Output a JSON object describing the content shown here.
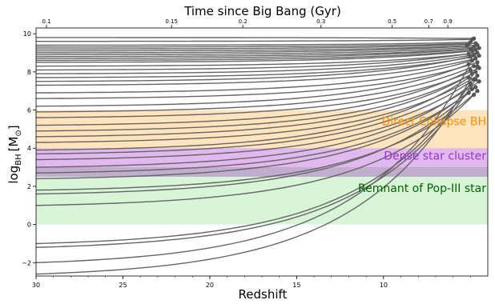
{
  "chart_data": {
    "type": "line",
    "title": "",
    "xlabel": "Redshift",
    "ylabel": "log",
    "ylabel_sub": "BH",
    "ylabel_unit": "[M",
    "ylabel_unit_close": "]",
    "top_axis_label": "Time since Big Bang (Gyr)",
    "xlim": [
      30,
      4
    ],
    "ylim": [
      -2.7,
      10.3
    ],
    "xticks": [
      {
        "value": 30,
        "label": "30"
      },
      {
        "value": 25,
        "label": "25"
      },
      {
        "value": 20,
        "label": "20"
      },
      {
        "value": 15,
        "label": "15"
      },
      {
        "value": 10,
        "label": "10"
      }
    ],
    "yticks": [
      {
        "value": 10,
        "label": "10"
      },
      {
        "value": 8,
        "label": "8"
      },
      {
        "value": 6,
        "label": "6"
      },
      {
        "value": 4,
        "label": "4"
      },
      {
        "value": 2,
        "label": "2"
      },
      {
        "value": 0,
        "label": "0"
      },
      {
        "value": -2,
        "label": "−2"
      }
    ],
    "top_ticks": [
      {
        "z": 29.4,
        "label": "0.1"
      },
      {
        "z": 22.2,
        "label": "0.15"
      },
      {
        "z": 18.1,
        "label": "0.2"
      },
      {
        "z": 13.6,
        "label": "0.3"
      },
      {
        "z": 9.5,
        "label": "0.5"
      },
      {
        "z": 7.4,
        "label": "0.7"
      },
      {
        "z": 6.3,
        "label": "0.9"
      }
    ],
    "bands": [
      {
        "label": "Direct Collapse BH",
        "ymin": 4.0,
        "ymax": 6.0,
        "color": "#ffd699",
        "opacity": 0.65,
        "text_color": "#ff8c00",
        "text_y": 5.2
      },
      {
        "label": "Dense star cluster",
        "ymin": 2.5,
        "ymax": 4.0,
        "color": "#b74fd6",
        "opacity": 0.4,
        "text_color": "#9932cc",
        "text_y": 3.4
      },
      {
        "label": "Remnant of Pop-III star",
        "ymin": 0.0,
        "ymax": 2.5,
        "color": "#b2ecb2",
        "opacity": 0.5,
        "text_color": "#006400",
        "text_y": 1.7
      }
    ],
    "band_overlap": {
      "ymin": 2.5,
      "ymax": 3.0,
      "color": "#9aa0a6",
      "opacity": 0.45
    },
    "line_color": "#666666",
    "marker_color": "#555555",
    "grid": false,
    "start_z": 30,
    "series": [
      {
        "start": 9.8,
        "end": 9.75,
        "z_end": 4.8
      },
      {
        "start": 9.6,
        "end": 9.7,
        "z_end": 4.9
      },
      {
        "start": 9.4,
        "end": 9.55,
        "z_end": 5.0
      },
      {
        "start": 9.3,
        "end": 9.5,
        "z_end": 4.7
      },
      {
        "start": 9.2,
        "end": 9.45,
        "z_end": 5.1
      },
      {
        "start": 9.1,
        "end": 9.4,
        "z_end": 4.6
      },
      {
        "start": 9.0,
        "end": 9.35,
        "z_end": 5.2
      },
      {
        "start": 8.9,
        "end": 9.3,
        "z_end": 4.8
      },
      {
        "start": 8.8,
        "end": 9.25,
        "z_end": 4.5
      },
      {
        "start": 8.7,
        "end": 9.2,
        "z_end": 5.0
      },
      {
        "start": 8.6,
        "end": 9.15,
        "z_end": 4.7
      },
      {
        "start": 8.5,
        "end": 9.1,
        "z_end": 4.9
      },
      {
        "start": 8.3,
        "end": 9.0,
        "z_end": 4.6
      },
      {
        "start": 8.1,
        "end": 8.95,
        "z_end": 5.1
      },
      {
        "start": 7.9,
        "end": 8.9,
        "z_end": 4.8
      },
      {
        "start": 7.7,
        "end": 8.85,
        "z_end": 4.5
      },
      {
        "start": 7.5,
        "end": 8.8,
        "z_end": 5.0
      },
      {
        "start": 7.3,
        "end": 8.7,
        "z_end": 4.7
      },
      {
        "start": 6.9,
        "end": 8.6,
        "z_end": 4.9
      },
      {
        "start": 6.6,
        "end": 8.5,
        "z_end": 4.6
      },
      {
        "start": 6.2,
        "end": 8.4,
        "z_end": 5.1
      },
      {
        "start": 5.9,
        "end": 8.3,
        "z_end": 4.8
      },
      {
        "start": 5.6,
        "end": 8.2,
        "z_end": 4.5
      },
      {
        "start": 5.2,
        "end": 8.1,
        "z_end": 5.0
      },
      {
        "start": 4.9,
        "end": 8.0,
        "z_end": 4.7
      },
      {
        "start": 4.6,
        "end": 7.9,
        "z_end": 4.9
      },
      {
        "start": 4.3,
        "end": 7.8,
        "z_end": 4.6
      },
      {
        "start": 3.9,
        "end": 7.7,
        "z_end": 5.1
      },
      {
        "start": 3.7,
        "end": 7.6,
        "z_end": 4.8
      },
      {
        "start": 3.4,
        "end": 7.5,
        "z_end": 4.5
      },
      {
        "start": 3.0,
        "end": 7.3,
        "z_end": 5.0
      },
      {
        "start": 2.7,
        "end": 7.2,
        "z_end": 4.7
      },
      {
        "start": 2.4,
        "end": 7.1,
        "z_end": 4.9
      },
      {
        "start": 1.8,
        "end": 7.0,
        "z_end": 4.6
      },
      {
        "start": 1.6,
        "end": 6.9,
        "z_end": 5.1
      },
      {
        "start": 1.0,
        "end": 6.8,
        "z_end": 4.8
      },
      {
        "start": -1.0,
        "end": 7.4,
        "z_end": 5.0
      },
      {
        "start": -1.2,
        "end": 7.6,
        "z_end": 4.7
      },
      {
        "start": -2.0,
        "end": 8.6,
        "z_end": 4.9
      },
      {
        "start": -2.6,
        "end": 8.3,
        "z_end": 4.6
      }
    ]
  }
}
